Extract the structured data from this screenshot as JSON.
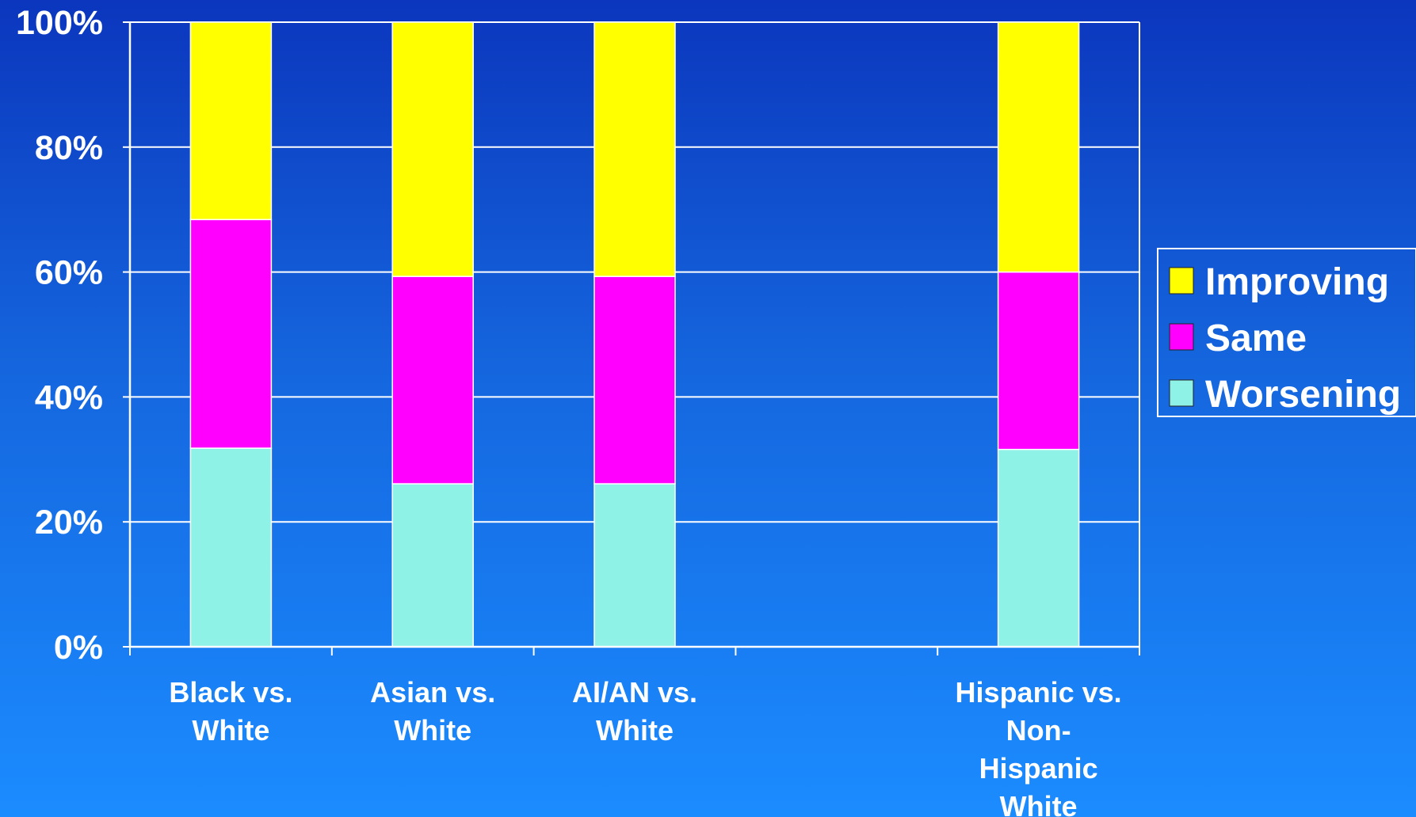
{
  "chart_data": {
    "type": "bar",
    "stacked": true,
    "categories": [
      [
        "Black vs.",
        "White"
      ],
      [
        "Asian vs.",
        "White"
      ],
      [
        "AI/AN vs.",
        "White"
      ],
      [],
      [
        "Hispanic vs.",
        "Non-",
        "Hispanic",
        "White"
      ]
    ],
    "series": [
      {
        "name": "Worsening",
        "color": "#8ef2e6",
        "values": [
          31.8,
          26.1,
          26.1,
          null,
          31.6
        ]
      },
      {
        "name": "Same",
        "color": "#ff00ff",
        "values": [
          36.6,
          33.2,
          33.2,
          null,
          28.4
        ]
      },
      {
        "name": "Improving",
        "color": "#ffff00",
        "values": [
          31.6,
          40.7,
          40.7,
          null,
          40.0
        ]
      }
    ],
    "ylim": [
      0,
      100
    ],
    "yticks": [
      "0%",
      "20%",
      "40%",
      "60%",
      "80%",
      "100%"
    ],
    "grid": true,
    "legend": {
      "position": "right",
      "order": [
        "Improving",
        "Same",
        "Worsening"
      ]
    },
    "background": {
      "top": "#0b36bd",
      "bottom": "#1b8cff"
    }
  }
}
